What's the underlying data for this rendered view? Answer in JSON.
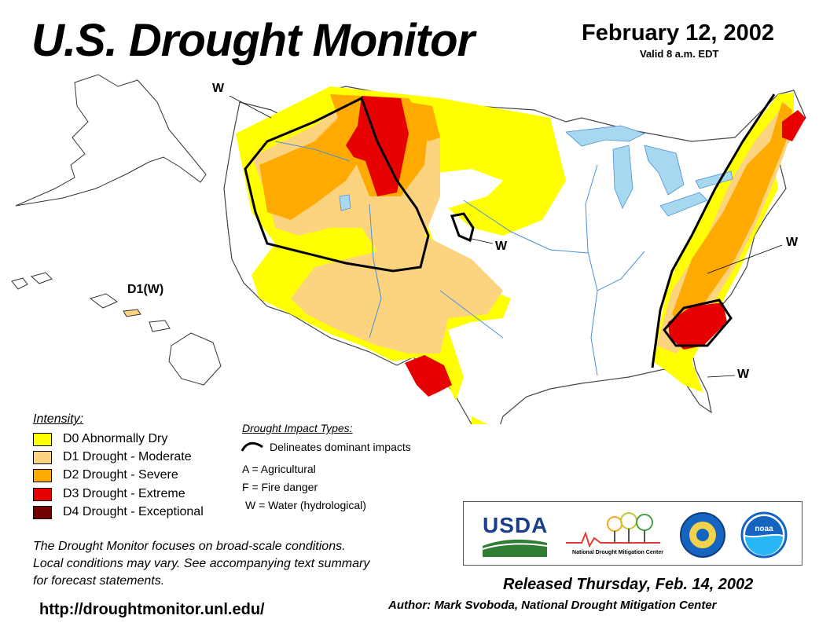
{
  "header": {
    "title": "U.S. Drought Monitor",
    "date": "February 12, 2002",
    "valid": "Valid 8 a.m. EDT"
  },
  "map": {
    "labels": [
      {
        "id": "w-northwest",
        "text": "W"
      },
      {
        "id": "w-plains",
        "text": "W"
      },
      {
        "id": "w-midatlantic",
        "text": "W"
      },
      {
        "id": "w-southeast",
        "text": "W"
      },
      {
        "id": "hawaii",
        "text": "D1(W)"
      }
    ],
    "colors": {
      "water": "#a8d8ef",
      "rivers": "#4a90d9",
      "D0": "#ffff00",
      "D1": "#fcd37f",
      "D2": "#ffaa00",
      "D3": "#e60000",
      "D4": "#730000"
    }
  },
  "legend": {
    "title": "Intensity:",
    "items": [
      {
        "label": "D0 Abnormally Dry",
        "color": "#ffff00"
      },
      {
        "label": "D1 Drought - Moderate",
        "color": "#fcd37f"
      },
      {
        "label": "D2 Drought - Severe",
        "color": "#ffaa00"
      },
      {
        "label": "D3 Drought - Extreme",
        "color": "#e60000"
      },
      {
        "label": "D4 Drought - Exceptional",
        "color": "#730000"
      }
    ]
  },
  "impact": {
    "title": "Drought Impact Types:",
    "line_label": "Delineates dominant impacts",
    "types": [
      "A = Agricultural",
      "F = Fire danger",
      "W = Water (hydrological)"
    ]
  },
  "note": {
    "lines": [
      "The Drought Monitor focuses on broad-scale conditions.",
      "Local conditions may vary. See accompanying text summary",
      "for forecast statements."
    ]
  },
  "footer": {
    "url": "http://droughtmonitor.unl.edu/",
    "released": "Released Thursday, Feb. 14, 2002",
    "author": "Author: Mark Svoboda, National Drought Mitigation Center"
  },
  "logos": {
    "usda": "USDA",
    "ndmc": "National Drought Mitigation Center",
    "commerce_icon": "seal-icon",
    "noaa": "noaa"
  }
}
